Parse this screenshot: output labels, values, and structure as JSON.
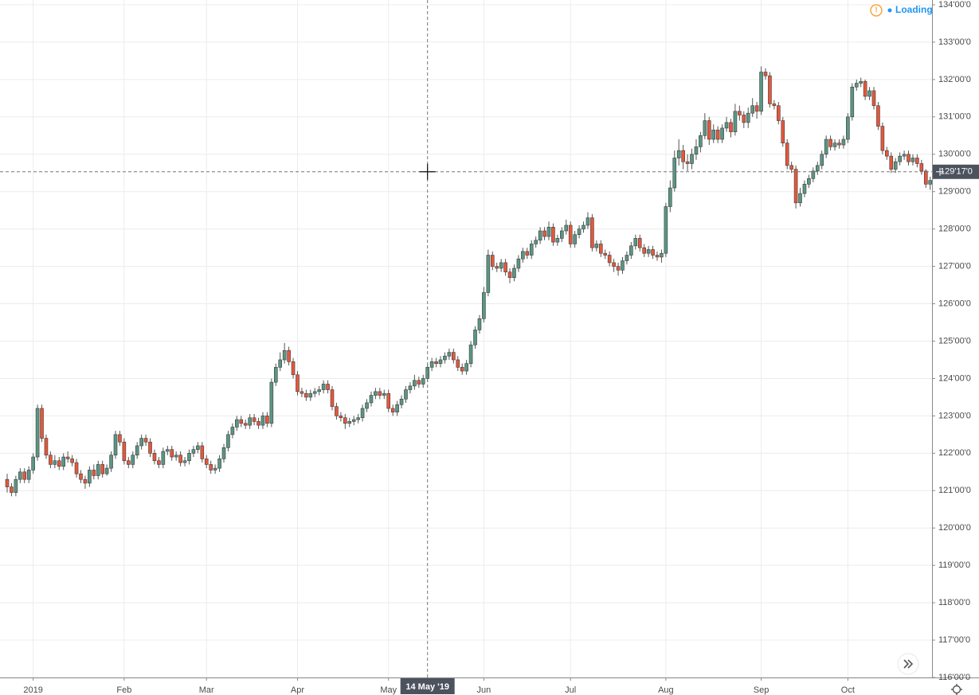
{
  "chart_data": {
    "type": "candlestick",
    "status": "Loading",
    "up_color": "#5a9684",
    "down_color": "#e5573c",
    "grid": true,
    "ylim": [
      116,
      134
    ],
    "yticks": [
      {
        "value": 116,
        "label": "116'00'0"
      },
      {
        "value": 117,
        "label": "117'00'0"
      },
      {
        "value": 118,
        "label": "118'00'0"
      },
      {
        "value": 119,
        "label": "119'00'0"
      },
      {
        "value": 120,
        "label": "120'00'0"
      },
      {
        "value": 121,
        "label": "121'00'0"
      },
      {
        "value": 122,
        "label": "122'00'0"
      },
      {
        "value": 123,
        "label": "123'00'0"
      },
      {
        "value": 124,
        "label": "124'00'0"
      },
      {
        "value": 125,
        "label": "125'00'0"
      },
      {
        "value": 126,
        "label": "126'00'0"
      },
      {
        "value": 127,
        "label": "127'00'0"
      },
      {
        "value": 128,
        "label": "128'00'0"
      },
      {
        "value": 129,
        "label": "129'00'0"
      },
      {
        "value": 130,
        "label": "130'00'0"
      },
      {
        "value": 131,
        "label": "131'00'0"
      },
      {
        "value": 132,
        "label": "132'00'0"
      },
      {
        "value": 133,
        "label": "133'00'0"
      },
      {
        "value": 134,
        "label": "134'00'0"
      }
    ],
    "xticks": [
      {
        "value": "2019-01-02",
        "label": "2019"
      },
      {
        "value": "2019-02-01",
        "label": "Feb"
      },
      {
        "value": "2019-03-01",
        "label": "Mar"
      },
      {
        "value": "2019-04-01",
        "label": "Apr"
      },
      {
        "value": "2019-05-01",
        "label": "May"
      },
      {
        "value": "2019-06-03",
        "label": "Jun"
      },
      {
        "value": "2019-07-01",
        "label": "Jul"
      },
      {
        "value": "2019-08-01",
        "label": "Aug"
      },
      {
        "value": "2019-09-03",
        "label": "Sep"
      },
      {
        "value": "2019-10-01",
        "label": "Oct"
      }
    ],
    "crosshair": {
      "x": "2019-05-14",
      "x_label": "14 May '19",
      "y": 129.53125,
      "y_label": "129'17'0"
    },
    "x": [
      "2018-12-21",
      "2018-12-24",
      "2018-12-26",
      "2018-12-27",
      "2018-12-28",
      "2018-12-31",
      "2019-01-02",
      "2019-01-03",
      "2019-01-04",
      "2019-01-07",
      "2019-01-08",
      "2019-01-09",
      "2019-01-10",
      "2019-01-11",
      "2019-01-14",
      "2019-01-15",
      "2019-01-16",
      "2019-01-17",
      "2019-01-18",
      "2019-01-22",
      "2019-01-23",
      "2019-01-24",
      "2019-01-25",
      "2019-01-28",
      "2019-01-29",
      "2019-01-30",
      "2019-01-31",
      "2019-02-01",
      "2019-02-04",
      "2019-02-05",
      "2019-02-06",
      "2019-02-07",
      "2019-02-08",
      "2019-02-11",
      "2019-02-12",
      "2019-02-13",
      "2019-02-14",
      "2019-02-15",
      "2019-02-19",
      "2019-02-20",
      "2019-02-21",
      "2019-02-22",
      "2019-02-25",
      "2019-02-26",
      "2019-02-27",
      "2019-02-28",
      "2019-03-01",
      "2019-03-04",
      "2019-03-05",
      "2019-03-06",
      "2019-03-07",
      "2019-03-08",
      "2019-03-11",
      "2019-03-12",
      "2019-03-13",
      "2019-03-14",
      "2019-03-15",
      "2019-03-18",
      "2019-03-19",
      "2019-03-20",
      "2019-03-21",
      "2019-03-22",
      "2019-03-25",
      "2019-03-26",
      "2019-03-27",
      "2019-03-28",
      "2019-03-29",
      "2019-04-01",
      "2019-04-02",
      "2019-04-03",
      "2019-04-04",
      "2019-04-05",
      "2019-04-08",
      "2019-04-09",
      "2019-04-10",
      "2019-04-11",
      "2019-04-12",
      "2019-04-15",
      "2019-04-16",
      "2019-04-17",
      "2019-04-18",
      "2019-04-22",
      "2019-04-23",
      "2019-04-24",
      "2019-04-25",
      "2019-04-26",
      "2019-04-29",
      "2019-04-30",
      "2019-05-01",
      "2019-05-02",
      "2019-05-03",
      "2019-05-06",
      "2019-05-07",
      "2019-05-08",
      "2019-05-09",
      "2019-05-10",
      "2019-05-13",
      "2019-05-14",
      "2019-05-15",
      "2019-05-16",
      "2019-05-17",
      "2019-05-20",
      "2019-05-21",
      "2019-05-22",
      "2019-05-23",
      "2019-05-24",
      "2019-05-28",
      "2019-05-29",
      "2019-05-30",
      "2019-05-31",
      "2019-06-03",
      "2019-06-04",
      "2019-06-05",
      "2019-06-06",
      "2019-06-07",
      "2019-06-10",
      "2019-06-11",
      "2019-06-12",
      "2019-06-13",
      "2019-06-14",
      "2019-06-17",
      "2019-06-18",
      "2019-06-19",
      "2019-06-20",
      "2019-06-21",
      "2019-06-24",
      "2019-06-25",
      "2019-06-26",
      "2019-06-27",
      "2019-06-28",
      "2019-07-01",
      "2019-07-02",
      "2019-07-03",
      "2019-07-05",
      "2019-07-08",
      "2019-07-09",
      "2019-07-10",
      "2019-07-11",
      "2019-07-12",
      "2019-07-15",
      "2019-07-16",
      "2019-07-17",
      "2019-07-18",
      "2019-07-19",
      "2019-07-22",
      "2019-07-23",
      "2019-07-24",
      "2019-07-25",
      "2019-07-26",
      "2019-07-29",
      "2019-07-30",
      "2019-07-31",
      "2019-08-01",
      "2019-08-02",
      "2019-08-05",
      "2019-08-06",
      "2019-08-07",
      "2019-08-08",
      "2019-08-09",
      "2019-08-12",
      "2019-08-13",
      "2019-08-14",
      "2019-08-15",
      "2019-08-16",
      "2019-08-19",
      "2019-08-20",
      "2019-08-21",
      "2019-08-22",
      "2019-08-23",
      "2019-08-26",
      "2019-08-27",
      "2019-08-28",
      "2019-08-29",
      "2019-08-30",
      "2019-09-03",
      "2019-09-04",
      "2019-09-05",
      "2019-09-06",
      "2019-09-09",
      "2019-09-10",
      "2019-09-11",
      "2019-09-12",
      "2019-09-13",
      "2019-09-16",
      "2019-09-17",
      "2019-09-18",
      "2019-09-19",
      "2019-09-20",
      "2019-09-23",
      "2019-09-24",
      "2019-09-25",
      "2019-09-26",
      "2019-09-27",
      "2019-09-30",
      "2019-10-01",
      "2019-10-02",
      "2019-10-03",
      "2019-10-04",
      "2019-10-07",
      "2019-10-08",
      "2019-10-09",
      "2019-10-10",
      "2019-10-11",
      "2019-10-14",
      "2019-10-15",
      "2019-10-16",
      "2019-10-17",
      "2019-10-18",
      "2019-10-21",
      "2019-10-22",
      "2019-10-23",
      "2019-10-24",
      "2019-10-25",
      "2019-10-28"
    ],
    "open": [
      121.3,
      121.1,
      120.95,
      121.3,
      121.5,
      121.3,
      121.55,
      121.9,
      123.2,
      122.4,
      121.95,
      121.7,
      121.8,
      121.65,
      121.9,
      121.85,
      121.75,
      121.45,
      121.3,
      121.2,
      121.55,
      121.4,
      121.7,
      121.45,
      121.6,
      121.95,
      122.5,
      122.3,
      121.8,
      121.7,
      121.95,
      122.2,
      122.4,
      122.3,
      122.0,
      121.8,
      121.7,
      122.05,
      122.1,
      121.9,
      121.95,
      121.75,
      121.8,
      122.0,
      122.1,
      122.2,
      121.85,
      121.7,
      121.55,
      121.6,
      121.85,
      122.15,
      122.5,
      122.7,
      122.9,
      122.8,
      122.75,
      122.95,
      122.85,
      122.75,
      123.0,
      122.8,
      123.9,
      124.3,
      124.5,
      124.75,
      124.45,
      124.1,
      123.65,
      123.6,
      123.5,
      123.6,
      123.65,
      123.7,
      123.85,
      123.7,
      123.25,
      123.0,
      122.95,
      122.8,
      122.85,
      122.9,
      122.95,
      123.2,
      123.35,
      123.55,
      123.65,
      123.55,
      123.6,
      123.2,
      123.1,
      123.3,
      123.45,
      123.7,
      123.8,
      123.95,
      123.85,
      124.0,
      124.3,
      124.45,
      124.4,
      124.5,
      124.6,
      124.7,
      124.5,
      124.3,
      124.2,
      124.4,
      124.9,
      125.3,
      125.6,
      126.3,
      127.3,
      127.0,
      126.95,
      127.1,
      126.85,
      126.7,
      126.95,
      127.2,
      127.4,
      127.3,
      127.6,
      127.7,
      127.95,
      127.8,
      128.05,
      127.65,
      127.75,
      127.95,
      128.1,
      127.6,
      127.85,
      128.0,
      128.1,
      128.3,
      127.5,
      127.6,
      127.35,
      127.3,
      127.1,
      127.0,
      126.9,
      127.15,
      127.3,
      127.55,
      127.75,
      127.5,
      127.35,
      127.45,
      127.3,
      127.25,
      127.35,
      128.6,
      129.1,
      129.9,
      130.1,
      129.8,
      129.75,
      130.0,
      130.2,
      130.5,
      130.9,
      130.4,
      130.65,
      130.4,
      130.7,
      130.85,
      130.6,
      131.15,
      131.05,
      130.85,
      131.1,
      131.3,
      131.15,
      132.2,
      132.1,
      131.35,
      131.3,
      130.9,
      130.3,
      129.7,
      129.6,
      128.7,
      128.95,
      129.2,
      129.35,
      129.55,
      129.7,
      130.0,
      130.4,
      130.2,
      130.3,
      130.25,
      130.4,
      131.0,
      131.8,
      131.9,
      131.95,
      131.55,
      131.7,
      131.3,
      130.75,
      130.1,
      129.95,
      129.6,
      129.8,
      129.95,
      130.0,
      129.8,
      129.9,
      129.75,
      129.55,
      129.2
    ],
    "high": [
      121.45,
      121.2,
      121.4,
      121.6,
      121.6,
      121.65,
      122.0,
      123.3,
      123.3,
      122.5,
      122.05,
      121.95,
      121.9,
      122.0,
      122.05,
      121.95,
      121.85,
      121.55,
      121.4,
      121.65,
      121.7,
      121.8,
      121.8,
      121.7,
      122.05,
      122.6,
      122.6,
      122.4,
      121.9,
      122.05,
      122.3,
      122.5,
      122.5,
      122.4,
      122.1,
      121.9,
      122.15,
      122.2,
      122.2,
      122.05,
      122.05,
      121.9,
      122.1,
      122.2,
      122.3,
      122.3,
      121.95,
      121.8,
      121.7,
      121.95,
      122.25,
      122.6,
      122.8,
      123.0,
      123.0,
      122.9,
      123.05,
      123.05,
      122.95,
      123.1,
      123.1,
      124.0,
      124.4,
      124.7,
      124.95,
      124.85,
      124.55,
      124.2,
      123.75,
      123.7,
      123.7,
      123.75,
      123.8,
      123.95,
      123.95,
      123.8,
      123.35,
      123.1,
      123.05,
      122.95,
      123.0,
      123.05,
      123.3,
      123.45,
      123.65,
      123.75,
      123.75,
      123.7,
      123.7,
      123.3,
      123.4,
      123.55,
      123.8,
      123.9,
      124.1,
      124.05,
      124.1,
      124.4,
      124.55,
      124.55,
      124.6,
      124.7,
      124.8,
      124.8,
      124.6,
      124.4,
      124.5,
      125.0,
      125.4,
      125.7,
      126.45,
      127.45,
      127.4,
      127.1,
      127.2,
      127.2,
      126.95,
      127.05,
      127.3,
      127.5,
      127.5,
      127.7,
      127.8,
      128.05,
      128.05,
      128.2,
      128.15,
      127.85,
      128.05,
      128.25,
      128.2,
      127.95,
      128.1,
      128.2,
      128.45,
      128.4,
      127.7,
      127.7,
      127.45,
      127.4,
      127.2,
      127.1,
      127.25,
      127.4,
      127.65,
      127.85,
      127.85,
      127.6,
      127.55,
      127.55,
      127.4,
      127.45,
      128.7,
      129.3,
      130.1,
      130.4,
      130.25,
      130.0,
      130.15,
      130.4,
      130.6,
      131.1,
      131.0,
      130.8,
      130.75,
      130.8,
      131.0,
      130.95,
      131.35,
      131.3,
      131.15,
      131.25,
      131.5,
      131.4,
      132.35,
      132.3,
      132.2,
      131.45,
      131.4,
      131.0,
      130.4,
      129.8,
      129.7,
      129.1,
      129.3,
      129.45,
      129.65,
      129.8,
      130.1,
      130.5,
      130.5,
      130.4,
      130.4,
      130.5,
      131.1,
      131.9,
      132.0,
      132.05,
      132.0,
      131.8,
      131.8,
      131.4,
      130.85,
      130.2,
      130.05,
      129.9,
      130.05,
      130.1,
      130.1,
      130.0,
      130.0,
      129.85,
      129.6,
      129.4
    ],
    "low": [
      120.95,
      120.85,
      120.85,
      121.2,
      121.2,
      121.2,
      121.45,
      121.8,
      122.3,
      121.85,
      121.6,
      121.6,
      121.55,
      121.55,
      121.75,
      121.65,
      121.35,
      121.2,
      121.05,
      121.1,
      121.3,
      121.3,
      121.35,
      121.4,
      121.5,
      121.85,
      122.2,
      121.7,
      121.6,
      121.6,
      121.85,
      122.1,
      122.2,
      121.9,
      121.7,
      121.6,
      121.6,
      121.95,
      121.8,
      121.8,
      121.65,
      121.65,
      121.7,
      121.9,
      122.0,
      121.75,
      121.6,
      121.45,
      121.45,
      121.5,
      121.75,
      122.05,
      122.4,
      122.6,
      122.7,
      122.65,
      122.65,
      122.75,
      122.65,
      122.65,
      122.7,
      122.7,
      123.8,
      124.2,
      124.4,
      124.35,
      124.0,
      123.55,
      123.5,
      123.4,
      123.4,
      123.5,
      123.55,
      123.6,
      123.6,
      123.15,
      122.9,
      122.85,
      122.65,
      122.7,
      122.75,
      122.8,
      122.85,
      123.1,
      123.25,
      123.45,
      123.45,
      123.45,
      123.1,
      123.0,
      123.0,
      123.2,
      123.35,
      123.6,
      123.7,
      123.75,
      123.75,
      123.9,
      124.2,
      124.3,
      124.3,
      124.4,
      124.5,
      124.4,
      124.2,
      124.1,
      124.1,
      124.3,
      124.8,
      125.2,
      125.5,
      126.2,
      126.9,
      126.85,
      126.85,
      126.75,
      126.55,
      126.6,
      126.85,
      127.1,
      127.2,
      127.2,
      127.5,
      127.6,
      127.7,
      127.7,
      127.55,
      127.55,
      127.65,
      127.85,
      127.5,
      127.5,
      127.75,
      127.9,
      128.0,
      127.4,
      127.4,
      127.25,
      127.2,
      127.0,
      126.85,
      126.75,
      126.8,
      127.05,
      127.2,
      127.45,
      127.4,
      127.25,
      127.25,
      127.2,
      127.15,
      127.1,
      127.25,
      128.45,
      129.0,
      129.7,
      129.6,
      129.55,
      129.6,
      129.85,
      130.05,
      130.4,
      130.25,
      130.3,
      130.3,
      130.3,
      130.6,
      130.45,
      130.5,
      130.9,
      130.7,
      130.7,
      131.0,
      130.95,
      131.05,
      132.0,
      131.25,
      131.2,
      130.8,
      130.2,
      129.6,
      129.5,
      128.55,
      128.6,
      128.85,
      129.1,
      129.25,
      129.45,
      129.6,
      129.9,
      130.1,
      130.1,
      130.15,
      130.15,
      130.3,
      130.9,
      131.7,
      131.8,
      131.45,
      131.45,
      131.2,
      130.65,
      130.0,
      129.85,
      129.5,
      129.5,
      129.7,
      129.85,
      129.7,
      129.7,
      129.65,
      129.45,
      129.1,
      129.05
    ],
    "close": [
      121.1,
      120.95,
      121.3,
      121.5,
      121.3,
      121.55,
      121.9,
      123.2,
      122.4,
      121.95,
      121.7,
      121.8,
      121.65,
      121.9,
      121.85,
      121.75,
      121.45,
      121.3,
      121.2,
      121.55,
      121.4,
      121.7,
      121.45,
      121.6,
      121.95,
      122.5,
      122.3,
      121.8,
      121.7,
      121.95,
      122.2,
      122.4,
      122.3,
      122.0,
      121.8,
      121.7,
      122.05,
      122.1,
      121.9,
      121.95,
      121.75,
      121.8,
      122.0,
      122.1,
      122.2,
      121.85,
      121.7,
      121.55,
      121.6,
      121.85,
      122.15,
      122.5,
      122.7,
      122.9,
      122.8,
      122.75,
      122.95,
      122.85,
      122.75,
      123.0,
      122.8,
      123.9,
      124.3,
      124.5,
      124.75,
      124.45,
      124.1,
      123.65,
      123.6,
      123.5,
      123.6,
      123.65,
      123.7,
      123.85,
      123.7,
      123.25,
      123.0,
      122.95,
      122.8,
      122.85,
      122.9,
      122.95,
      123.2,
      123.35,
      123.55,
      123.65,
      123.55,
      123.6,
      123.2,
      123.1,
      123.3,
      123.45,
      123.7,
      123.8,
      123.95,
      123.85,
      124.0,
      124.3,
      124.45,
      124.4,
      124.5,
      124.6,
      124.7,
      124.5,
      124.3,
      124.2,
      124.4,
      124.9,
      125.3,
      125.6,
      126.3,
      127.3,
      127.0,
      126.95,
      127.1,
      126.85,
      126.7,
      126.95,
      127.2,
      127.4,
      127.3,
      127.6,
      127.7,
      127.95,
      127.8,
      128.05,
      127.65,
      127.75,
      127.95,
      128.1,
      127.6,
      127.85,
      128.0,
      128.1,
      128.3,
      127.5,
      127.6,
      127.35,
      127.3,
      127.1,
      127.0,
      126.9,
      127.15,
      127.3,
      127.55,
      127.75,
      127.5,
      127.35,
      127.45,
      127.3,
      127.25,
      127.35,
      128.6,
      129.1,
      129.9,
      130.1,
      129.8,
      129.75,
      130.0,
      130.2,
      130.5,
      130.9,
      130.4,
      130.65,
      130.4,
      130.7,
      130.85,
      130.6,
      131.15,
      131.05,
      130.85,
      131.1,
      131.3,
      131.15,
      132.2,
      132.1,
      131.35,
      131.3,
      130.9,
      130.3,
      129.7,
      129.6,
      128.7,
      128.95,
      129.2,
      129.35,
      129.55,
      129.7,
      130.0,
      130.4,
      130.2,
      130.3,
      130.25,
      130.4,
      131.0,
      131.8,
      131.9,
      131.95,
      131.55,
      131.7,
      131.3,
      130.75,
      130.1,
      129.95,
      129.6,
      129.8,
      129.95,
      130.0,
      129.8,
      129.9,
      129.75,
      129.55,
      129.2,
      129.3
    ]
  }
}
